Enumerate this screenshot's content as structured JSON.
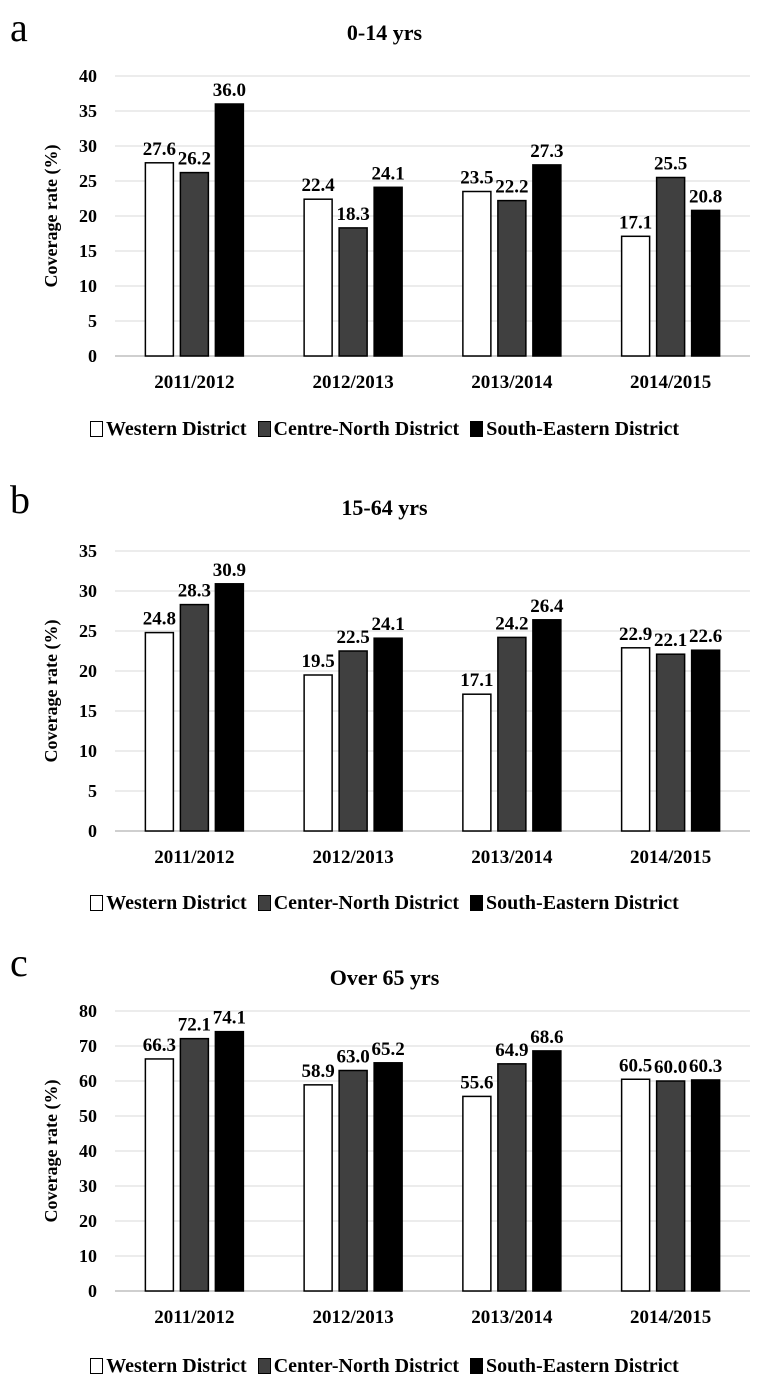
{
  "chart_data": [
    {
      "type": "bar",
      "panel_label": "a",
      "title": "0-14 yrs",
      "ylabel": "Coverage rate (%)",
      "categories": [
        "2011/2012",
        "2012/2013",
        "2013/2014",
        "2014/2015"
      ],
      "ylim": [
        0,
        40
      ],
      "yticks": [
        0,
        5,
        10,
        15,
        20,
        25,
        30,
        35,
        40
      ],
      "grid": true,
      "legend_position": "bottom",
      "series": [
        {
          "name": "Western District",
          "color": "#ffffff",
          "values": [
            27.6,
            22.4,
            23.5,
            17.1
          ],
          "labels": [
            "27.6",
            "22.4",
            "23.5",
            "17.1"
          ]
        },
        {
          "name": "Centre-North District",
          "color": "#404040",
          "values": [
            26.2,
            18.3,
            22.2,
            25.5
          ],
          "labels": [
            "26.2",
            "18.3",
            "22.2",
            "25.5"
          ]
        },
        {
          "name": "South-Eastern District",
          "color": "#000000",
          "values": [
            36.0,
            24.1,
            27.3,
            20.8
          ],
          "labels": [
            "36.0",
            "24.1",
            "27.3",
            "20.8"
          ]
        }
      ]
    },
    {
      "type": "bar",
      "panel_label": "b",
      "title": "15-64 yrs",
      "ylabel": "Coverage rate (%)",
      "categories": [
        "2011/2012",
        "2012/2013",
        "2013/2014",
        "2014/2015"
      ],
      "ylim": [
        0,
        35
      ],
      "yticks": [
        0,
        5,
        10,
        15,
        20,
        25,
        30,
        35
      ],
      "grid": true,
      "legend_position": "bottom",
      "series": [
        {
          "name": "Western District",
          "color": "#ffffff",
          "values": [
            24.8,
            19.5,
            17.1,
            22.9
          ],
          "labels": [
            "24.8",
            "19.5",
            "17.1",
            "22.9"
          ]
        },
        {
          "name": "Center-North District",
          "color": "#404040",
          "values": [
            28.3,
            22.5,
            24.2,
            22.1
          ],
          "labels": [
            "28.3",
            "22.5",
            "24.2",
            "22.1"
          ]
        },
        {
          "name": "South-Eastern District",
          "color": "#000000",
          "values": [
            30.9,
            24.1,
            26.4,
            22.6
          ],
          "labels": [
            "30.9",
            "24.1",
            "26.4",
            "22.6"
          ]
        }
      ]
    },
    {
      "type": "bar",
      "panel_label": "c",
      "title": "Over 65 yrs",
      "ylabel": "Coverage rate (%)",
      "categories": [
        "2011/2012",
        "2012/2013",
        "2013/2014",
        "2014/2015"
      ],
      "ylim": [
        0,
        80
      ],
      "yticks": [
        0,
        10,
        20,
        30,
        40,
        50,
        60,
        70,
        80
      ],
      "grid": true,
      "legend_position": "bottom",
      "series": [
        {
          "name": "Western District",
          "color": "#ffffff",
          "values": [
            66.3,
            58.9,
            55.6,
            60.5
          ],
          "labels": [
            "66.3",
            "58.9",
            "55.6",
            "60.5"
          ]
        },
        {
          "name": "Center-North District",
          "color": "#404040",
          "values": [
            72.1,
            63.0,
            64.9,
            60.0
          ],
          "labels": [
            "72.1",
            "63.0",
            "64.9",
            "60.0"
          ]
        },
        {
          "name": "South-Eastern District",
          "color": "#000000",
          "values": [
            74.1,
            65.2,
            68.6,
            60.3
          ],
          "labels": [
            "74.1",
            "65.2",
            "68.6",
            "60.3"
          ]
        }
      ]
    }
  ]
}
